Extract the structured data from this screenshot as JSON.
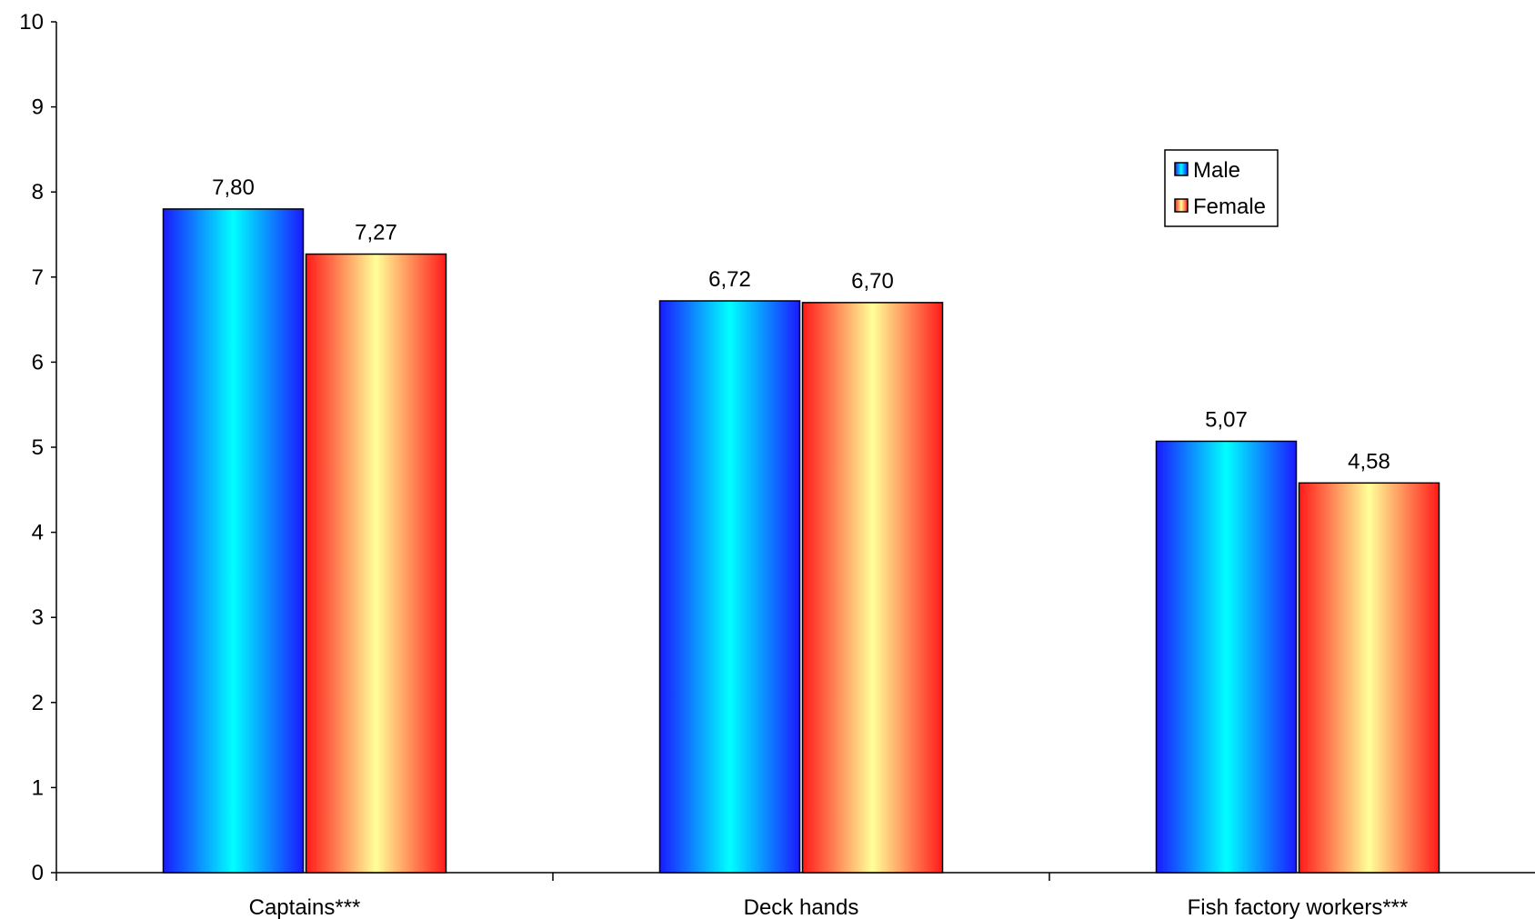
{
  "chart_data": {
    "type": "bar",
    "title": "",
    "xlabel": "",
    "ylabel": "",
    "ylim": [
      0,
      10
    ],
    "yticks": [
      0,
      1,
      2,
      3,
      4,
      5,
      6,
      7,
      8,
      9,
      10
    ],
    "grid": false,
    "legend_position": "top-right",
    "categories": [
      "Captains***",
      "Deck hands",
      "Fish factory workers***"
    ],
    "series": [
      {
        "name": "Male",
        "values": [
          7.8,
          6.72,
          5.07
        ],
        "labels": [
          "7,80",
          "6,72",
          "5,07"
        ],
        "color_edge": "#1c1cff",
        "color_center": "#00ffff"
      },
      {
        "name": "Female",
        "values": [
          7.27,
          6.7,
          4.58
        ],
        "labels": [
          "7,27",
          "6,70",
          "4,58"
        ],
        "color_edge": "#ff1c1c",
        "color_center": "#ffff99"
      }
    ]
  }
}
